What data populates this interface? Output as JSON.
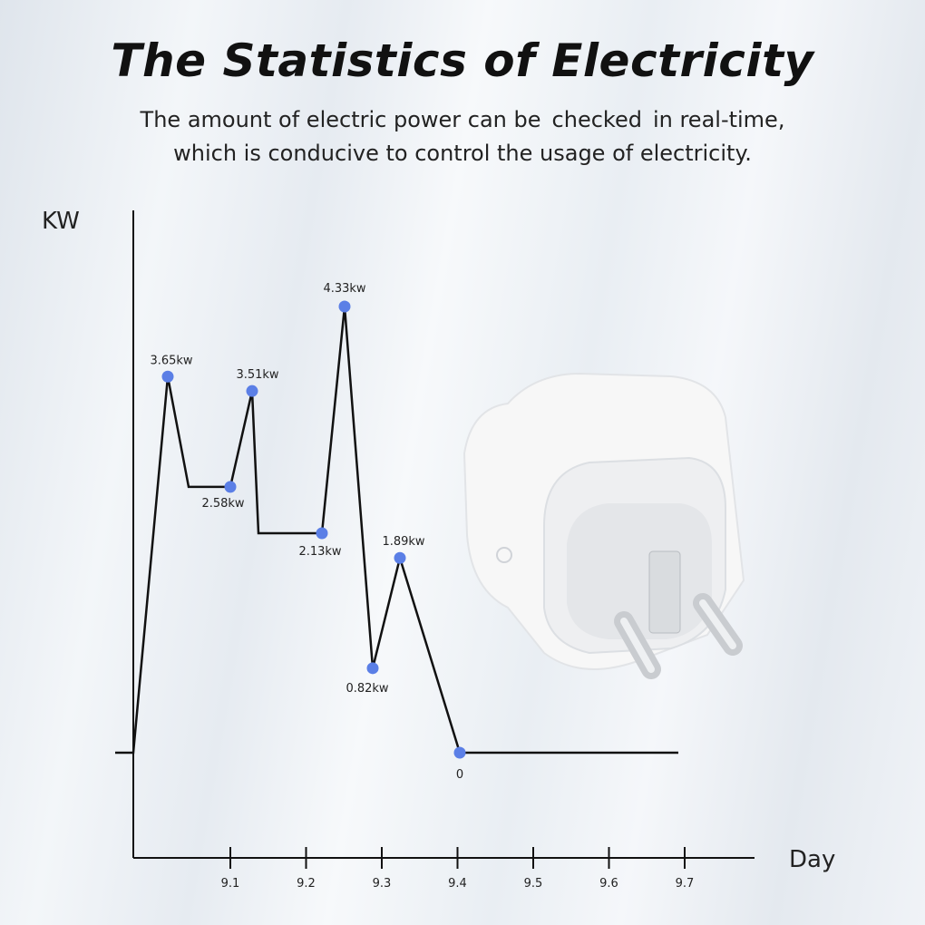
{
  "header": {
    "title": "The Statistics of Electricity",
    "subtitle_line1_a": "The amount of electric power can be",
    "subtitle_line1_b": "checked",
    "subtitle_line1_c": "in real-time,",
    "subtitle_line2": "which is conducive to control the usage of electricity."
  },
  "chart_data": {
    "type": "line",
    "xlabel": "Day",
    "ylabel": "KW",
    "x_ticks": [
      "9.1",
      "9.2",
      "9.3",
      "9.4",
      "9.5",
      "9.6",
      "9.7"
    ],
    "points": [
      {
        "label": "3.65kw",
        "value": 3.65
      },
      {
        "label": "2.58kw",
        "value": 2.58
      },
      {
        "label": "3.51kw",
        "value": 3.51
      },
      {
        "label": "2.13kw",
        "value": 2.13
      },
      {
        "label": "4.33kw",
        "value": 4.33
      },
      {
        "label": "0.82kw",
        "value": 0.82
      },
      {
        "label": "1.89kw",
        "value": 1.89
      },
      {
        "label": "0",
        "value": 0
      }
    ],
    "line_color": "#111111",
    "marker_color": "#5b7fe6"
  }
}
